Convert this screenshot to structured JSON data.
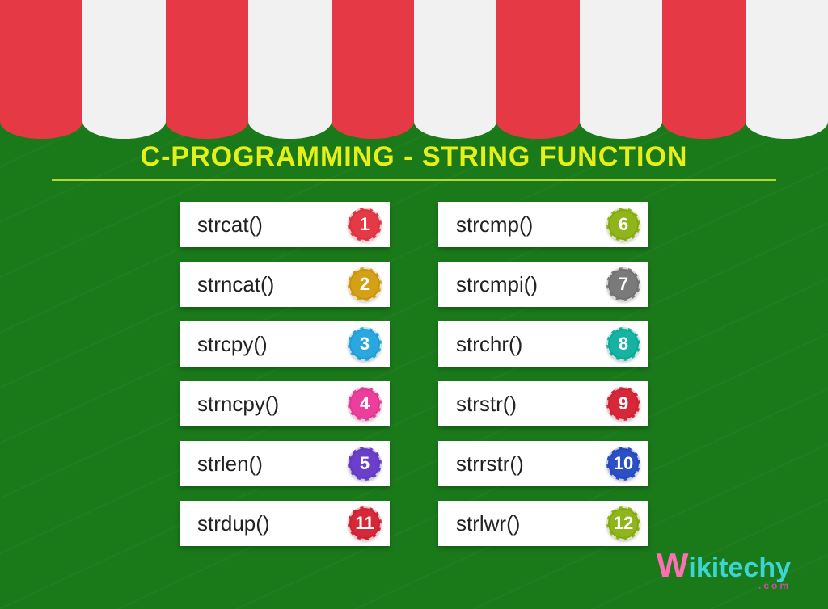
{
  "title": "C-PROGRAMMING - STRING FUNCTION",
  "logo": {
    "first": "W",
    "rest": "ikitechy",
    "sub": ".com"
  },
  "columns": [
    [
      {
        "label": "strcat()",
        "num": "1",
        "color": "#e63946"
      },
      {
        "label": "strncat()",
        "num": "2",
        "color": "#d6a016"
      },
      {
        "label": "strcpy()",
        "num": "3",
        "color": "#29a8e0"
      },
      {
        "label": "strncpy()",
        "num": "4",
        "color": "#ec3f9b"
      },
      {
        "label": "strlen()",
        "num": "5",
        "color": "#6a3fc9"
      },
      {
        "label": "strdup()",
        "num": "11",
        "color": "#d62839"
      }
    ],
    [
      {
        "label": "strcmp()",
        "num": "6",
        "color": "#8fb51a"
      },
      {
        "label": "strcmpi()",
        "num": "7",
        "color": "#7a7a7a"
      },
      {
        "label": "strchr()",
        "num": "8",
        "color": "#16b3a2"
      },
      {
        "label": "strstr()",
        "num": "9",
        "color": "#d62839"
      },
      {
        "label": "strrstr()",
        "num": "10",
        "color": "#2a4fc7"
      },
      {
        "label": "strlwr()",
        "num": "12",
        "color": "#8fb51a"
      }
    ]
  ],
  "awning": {
    "colors": {
      "red": "#e63946",
      "white": "#f1f1f1"
    },
    "stripes": 10
  },
  "style": {
    "background": "#1a7a1a",
    "title_color": "#e6f018",
    "title_fontsize": 34,
    "item_bg": "#ffffff",
    "item_fontsize": 26,
    "badge_fontsize": 22,
    "underline_color": "#b5d837"
  }
}
